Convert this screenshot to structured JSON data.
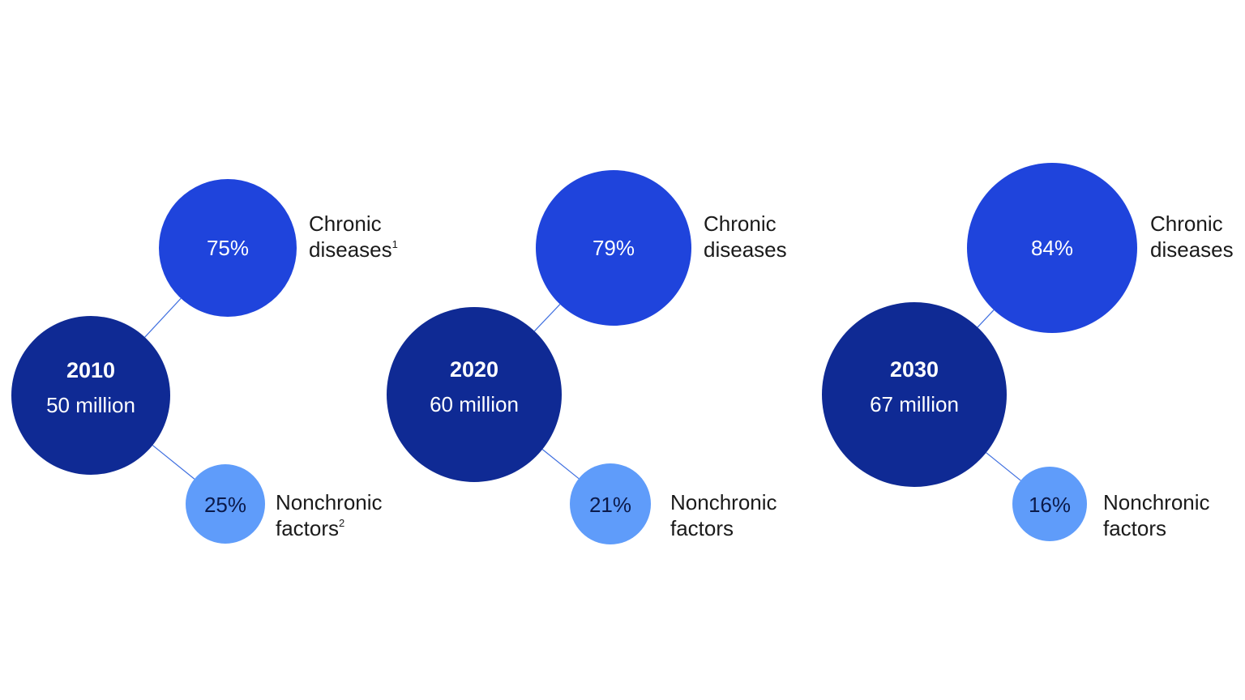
{
  "colors": {
    "main": "#0f2a94",
    "chronic": "#1f44dc",
    "nonchronic": "#5f9cfa",
    "connector": "#3f6fe0",
    "label_text": "#1a1a1a",
    "on_dark_text": "#ffffff",
    "on_light_text": "#0b1a4a"
  },
  "chart_data": {
    "type": "bubble-breakdown",
    "unit": "million",
    "groups": [
      {
        "year": "2010",
        "total_label": "50 million",
        "total": 50,
        "chronic": {
          "value": 75,
          "label": "75%",
          "text_lines": [
            "Chronic",
            "diseases"
          ],
          "footnote": "1"
        },
        "nonchronic": {
          "value": 25,
          "label": "25%",
          "text_lines": [
            "Nonchronic",
            "factors"
          ],
          "footnote": "2"
        }
      },
      {
        "year": "2020",
        "total_label": "60 million",
        "total": 60,
        "chronic": {
          "value": 79,
          "label": "79%",
          "text_lines": [
            "Chronic",
            "diseases"
          ],
          "footnote": ""
        },
        "nonchronic": {
          "value": 21,
          "label": "21%",
          "text_lines": [
            "Nonchronic",
            "factors"
          ],
          "footnote": ""
        }
      },
      {
        "year": "2030",
        "total_label": "67 million",
        "total": 67,
        "chronic": {
          "value": 84,
          "label": "84%",
          "text_lines": [
            "Chronic",
            "diseases"
          ],
          "footnote": ""
        },
        "nonchronic": {
          "value": 16,
          "label": "16%",
          "text_lines": [
            "Nonchronic",
            "factors"
          ],
          "footnote": ""
        }
      }
    ]
  }
}
